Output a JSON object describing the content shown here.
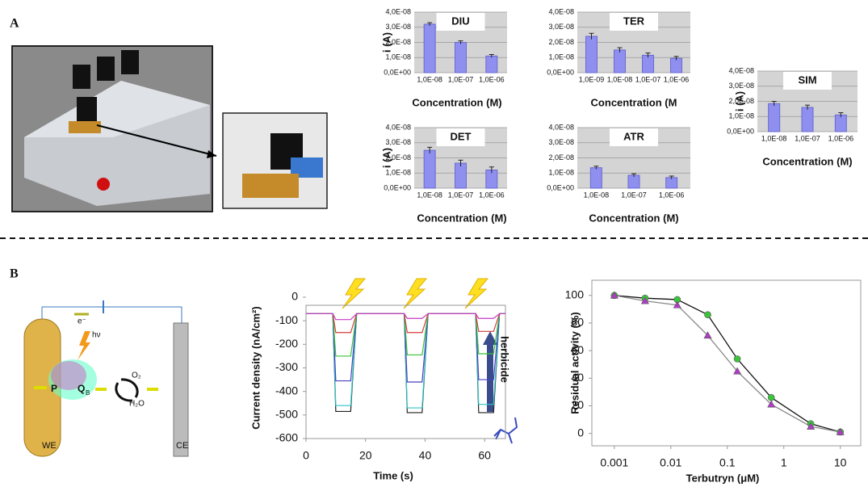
{
  "panels": {
    "a": "A",
    "b": "B"
  },
  "diagram": {
    "we": "WE",
    "ce": "CE",
    "electron": "e⁻",
    "light": "hν",
    "p": "P",
    "qb": "Q",
    "qb_sub": "B",
    "o2": "O₂",
    "h2o": "H₂O"
  },
  "chart_data": [
    {
      "type": "bar",
      "title": "DIU",
      "ylabel": "i (A)",
      "xlabel": "Concentration (M)",
      "color": "#8f8fef",
      "categories": [
        "1,0E-08",
        "1,0E-07",
        "1,0E-06"
      ],
      "values": [
        3.2e-08,
        2e-08,
        1.1e-08
      ],
      "errors": [
        1e-09,
        1e-09,
        1e-09
      ],
      "ylim": [
        0,
        4e-08
      ],
      "yticks": [
        {
          "value": 0,
          "label": "0,0E+00"
        },
        {
          "value": 1e-08,
          "label": "1,0E-08"
        },
        {
          "value": 2e-08,
          "label": "2,0E-08"
        },
        {
          "value": 3e-08,
          "label": "3,0E-08"
        },
        {
          "value": 4e-08,
          "label": "4,0E-08"
        }
      ]
    },
    {
      "type": "bar",
      "title": "TER",
      "xlabel": "Concentration (M",
      "color": "#8f8fef",
      "categories": [
        "1,0E-09",
        "1,0E-08",
        "1,0E-07",
        "1,0E-06"
      ],
      "values": [
        2.4e-08,
        1.5e-08,
        1.15e-08,
        9.5e-09
      ],
      "errors": [
        2e-09,
        1.5e-09,
        1.5e-09,
        1.2e-09
      ],
      "ylim": [
        0,
        4e-08
      ],
      "yticks": [
        {
          "value": 0,
          "label": "0,0E+00"
        },
        {
          "value": 1e-08,
          "label": "1,0E-08"
        },
        {
          "value": 2e-08,
          "label": "2,0E-08"
        },
        {
          "value": 3e-08,
          "label": "3,0E-08"
        },
        {
          "value": 4e-08,
          "label": "4,0E-08"
        }
      ]
    },
    {
      "type": "bar",
      "title": "SIM",
      "ylabel": "i (A)",
      "xlabel": "Concentration (M)",
      "color": "#8f8fef",
      "categories": [
        "1,0E-08",
        "1,0E-07",
        "1,0E-06"
      ],
      "values": [
        1.85e-08,
        1.6e-08,
        1.1e-08
      ],
      "errors": [
        1.5e-09,
        1.5e-09,
        1.5e-09
      ],
      "ylim": [
        0,
        4e-08
      ],
      "yticks": [
        {
          "value": 0,
          "label": "0,0E+00"
        },
        {
          "value": 1e-08,
          "label": "1,0E-08"
        },
        {
          "value": 2e-08,
          "label": "2,0E-08"
        },
        {
          "value": 3e-08,
          "label": "3,0E-08"
        },
        {
          "value": 4e-08,
          "label": "4,0E-08"
        }
      ]
    },
    {
      "type": "bar",
      "title": "DET",
      "ylabel": "i (A)",
      "xlabel": "Concentration (M)",
      "color": "#8f8fef",
      "categories": [
        "1,0E-08",
        "1,0E-07",
        "1,0E-06"
      ],
      "values": [
        2.5e-08,
        1.65e-08,
        1.2e-08
      ],
      "errors": [
        2e-09,
        2e-09,
        2e-09
      ],
      "ylim": [
        0,
        4e-08
      ],
      "yticks": [
        {
          "value": 0,
          "label": "0,0E+00"
        },
        {
          "value": 1e-08,
          "label": "1,0E-08"
        },
        {
          "value": 2e-08,
          "label": "2,0E-08"
        },
        {
          "value": 3e-08,
          "label": "3,0E-08"
        },
        {
          "value": 4e-08,
          "label": "4,0E-08"
        }
      ]
    },
    {
      "type": "bar",
      "title": "ATR",
      "xlabel": "Concentration (M)",
      "color": "#8f8fef",
      "categories": [
        "1,0E-08",
        "1,0E-07",
        "1,0E-06"
      ],
      "values": [
        1.35e-08,
        8.5e-09,
        7e-09
      ],
      "errors": [
        1e-09,
        1e-09,
        1e-09
      ],
      "ylim": [
        0,
        4e-08
      ],
      "yticks": [
        {
          "value": 0,
          "label": "0,0E+00"
        },
        {
          "value": 1e-08,
          "label": "1,0E-08"
        },
        {
          "value": 2e-08,
          "label": "2,0E-08"
        },
        {
          "value": 3e-08,
          "label": "3,0E-08"
        },
        {
          "value": 4e-08,
          "label": "4,0E-08"
        }
      ]
    },
    {
      "type": "line",
      "xlabel": "Time (s)",
      "ylabel": "Current density (nA/cm²)",
      "annotation": "herbicide",
      "xlim": [
        0,
        67
      ],
      "ylim": [
        -600,
        0
      ],
      "xticks": [
        0,
        20,
        40,
        60
      ],
      "yticks": [
        0,
        -100,
        -200,
        -300,
        -400,
        -500,
        -600
      ],
      "x": [
        0,
        9,
        10,
        15,
        17,
        20,
        33,
        34,
        39,
        41,
        44,
        57,
        58,
        63,
        65,
        67
      ],
      "series": [
        {
          "color": "#222222",
          "values": [
            -70,
            -70,
            -485,
            -485,
            -70,
            -70,
            -70,
            -490,
            -490,
            -70,
            -70,
            -70,
            -490,
            -490,
            -70,
            -70
          ]
        },
        {
          "color": "#2ec4c4",
          "values": [
            -70,
            -70,
            -460,
            -460,
            -70,
            -70,
            -70,
            -470,
            -470,
            -70,
            -70,
            -70,
            -455,
            -455,
            -70,
            -70
          ]
        },
        {
          "color": "#4a3fc4",
          "values": [
            -70,
            -70,
            -355,
            -355,
            -70,
            -70,
            -70,
            -360,
            -360,
            -70,
            -70,
            -70,
            -350,
            -350,
            -70,
            -70
          ]
        },
        {
          "color": "#35c435",
          "values": [
            -70,
            -70,
            -250,
            -250,
            -70,
            -70,
            -70,
            -245,
            -245,
            -70,
            -70,
            -70,
            -240,
            -240,
            -70,
            -70
          ]
        },
        {
          "color": "#d43a3a",
          "values": [
            -70,
            -70,
            -150,
            -150,
            -70,
            -70,
            -70,
            -150,
            -150,
            -70,
            -70,
            -70,
            -145,
            -145,
            -70,
            -70
          ]
        },
        {
          "color": "#c43ac4",
          "values": [
            -70,
            -70,
            -95,
            -95,
            -70,
            -70,
            -70,
            -90,
            -90,
            -70,
            -70,
            -70,
            -90,
            -90,
            -70,
            -70
          ]
        }
      ]
    },
    {
      "type": "scatter",
      "xscale": "log",
      "xlabel": "Terbutryn (μM)",
      "ylabel": "Residual activity (%)",
      "xlim": [
        0.0004,
        23
      ],
      "ylim": [
        -9,
        111
      ],
      "xticks": [
        0.001,
        0.01,
        0.1,
        1,
        10
      ],
      "yticks": [
        0,
        20,
        40,
        60,
        80,
        100
      ],
      "series": [
        {
          "color": "#3cc43c",
          "line_color": "#111111",
          "marker": "circle",
          "x": [
            0.001,
            0.0035,
            0.013,
            0.045,
            0.15,
            0.6,
            3,
            10
          ],
          "values": [
            100,
            98,
            97,
            86,
            54,
            26,
            7,
            1
          ]
        },
        {
          "color": "#b03cc4",
          "line_color": "#888888",
          "marker": "triangle",
          "x": [
            0.001,
            0.0035,
            0.013,
            0.045,
            0.15,
            0.6,
            3,
            10
          ],
          "values": [
            100,
            96,
            93,
            71,
            45,
            21,
            5,
            1
          ]
        }
      ]
    }
  ]
}
